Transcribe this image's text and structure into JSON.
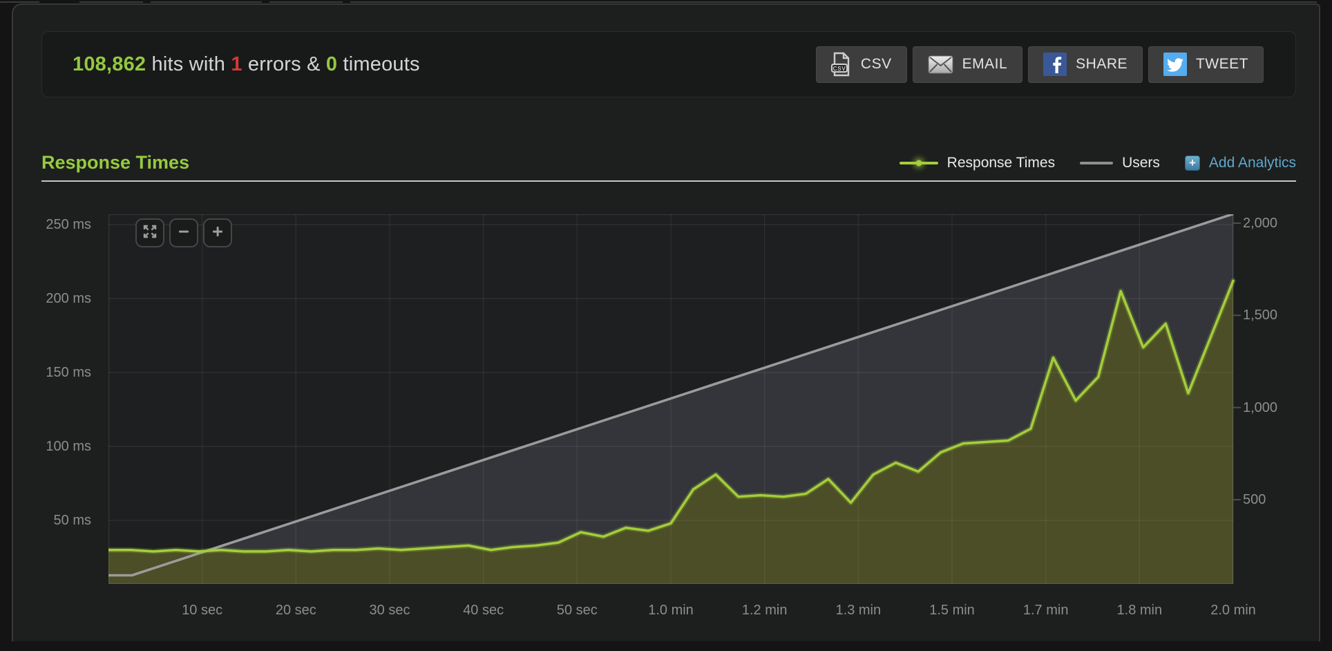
{
  "stats": {
    "hits": "108,862",
    "hits_text": " hits with ",
    "errors": "1",
    "errors_text": " errors & ",
    "timeouts": "0",
    "timeouts_text": " timeouts"
  },
  "toolbar": {
    "buttons": [
      {
        "label": "CSV",
        "icon": "csv-file-icon"
      },
      {
        "label": "EMAIL",
        "icon": "envelope-icon"
      },
      {
        "label": "SHARE",
        "icon": "facebook-icon"
      },
      {
        "label": "TWEET",
        "icon": "twitter-icon"
      }
    ]
  },
  "section": {
    "title": "Response Times"
  },
  "legend": {
    "response_label": "Response Times",
    "users_label": "Users",
    "add_analytics_label": "Add Analytics"
  },
  "colors": {
    "accent_green": "#94c840",
    "error_red": "#d43a32",
    "link_blue": "#5fa8cc",
    "response_line": "#a4cd3c",
    "response_fill": "#4b4e26",
    "users_line": "#9b9b9b",
    "users_fill": "#34353a",
    "plot_bg": "#1e1f20"
  },
  "chart_data": {
    "type": "area",
    "title": "Response Times",
    "x_unit": "seconds",
    "x_range": [
      0,
      120
    ],
    "grid": true,
    "x_ticks": [
      {
        "t": 10,
        "label": "10 sec"
      },
      {
        "t": 20,
        "label": "20 sec"
      },
      {
        "t": 30,
        "label": "30 sec"
      },
      {
        "t": 40,
        "label": "40 sec"
      },
      {
        "t": 50,
        "label": "50 sec"
      },
      {
        "t": 60,
        "label": "1.0 min"
      },
      {
        "t": 70,
        "label": "1.2 min"
      },
      {
        "t": 80,
        "label": "1.3 min"
      },
      {
        "t": 90,
        "label": "1.5 min"
      },
      {
        "t": 100,
        "label": "1.7 min"
      },
      {
        "t": 110,
        "label": "1.8 min"
      },
      {
        "t": 120,
        "label": "2.0 min"
      }
    ],
    "y_left": {
      "unit": "ms",
      "ticks": [
        50,
        100,
        150,
        200,
        250
      ],
      "tick_labels": [
        "50 ms",
        "100 ms",
        "150 ms",
        "200 ms",
        "250 ms"
      ]
    },
    "y_right": {
      "unit": "users",
      "ticks": [
        500,
        1000,
        1500,
        2000
      ],
      "tick_labels": [
        "500",
        "1,000",
        "1,500",
        "2,000"
      ]
    },
    "series": [
      {
        "name": "Response Times",
        "axis": "left",
        "color": "#a4cd3c",
        "fill": "#4b4e26",
        "points": [
          [
            0,
            30
          ],
          [
            2.4,
            30
          ],
          [
            4.8,
            29
          ],
          [
            7.2,
            30
          ],
          [
            9.6,
            29
          ],
          [
            12,
            30
          ],
          [
            14.4,
            29
          ],
          [
            16.8,
            29
          ],
          [
            19.2,
            30
          ],
          [
            21.6,
            29
          ],
          [
            24,
            30
          ],
          [
            26.4,
            30
          ],
          [
            28.8,
            31
          ],
          [
            31.2,
            30
          ],
          [
            33.6,
            31
          ],
          [
            36,
            32
          ],
          [
            38.4,
            33
          ],
          [
            40.8,
            30
          ],
          [
            43.2,
            32
          ],
          [
            45.6,
            33
          ],
          [
            48,
            35
          ],
          [
            50.4,
            42
          ],
          [
            52.8,
            39
          ],
          [
            55.2,
            45
          ],
          [
            57.6,
            43
          ],
          [
            60,
            48
          ],
          [
            62.4,
            71
          ],
          [
            64.8,
            81
          ],
          [
            67.2,
            66
          ],
          [
            69.6,
            67
          ],
          [
            72,
            66
          ],
          [
            74.4,
            68
          ],
          [
            76.8,
            78
          ],
          [
            79.2,
            62
          ],
          [
            81.6,
            81
          ],
          [
            84,
            89
          ],
          [
            86.4,
            83
          ],
          [
            88.8,
            96
          ],
          [
            91.2,
            102
          ],
          [
            93.6,
            103
          ],
          [
            96,
            104
          ],
          [
            98.4,
            112
          ],
          [
            100.8,
            160
          ],
          [
            103.2,
            131
          ],
          [
            105.6,
            147
          ],
          [
            108,
            205
          ],
          [
            110.4,
            167
          ],
          [
            112.8,
            183
          ],
          [
            115.2,
            136
          ],
          [
            117.6,
            174
          ],
          [
            120,
            212
          ]
        ]
      },
      {
        "name": "Users",
        "axis": "right",
        "color": "#9b9b9b",
        "fill": "#34353a",
        "points": [
          [
            0,
            90
          ],
          [
            2.5,
            90
          ],
          [
            120,
            2050
          ]
        ]
      }
    ]
  }
}
